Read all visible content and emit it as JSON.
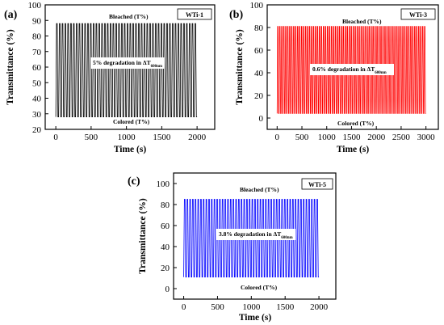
{
  "chart_data": [
    {
      "type": "line",
      "panel_label": "(a)",
      "sample_tag": "WTi-1",
      "xlabel": "Time (s)",
      "ylabel": "Transmittance (%)",
      "xticks": [
        "0",
        "500",
        "1000",
        "1500",
        "2000"
      ],
      "yticks": [
        "20",
        "30",
        "40",
        "50",
        "60",
        "70",
        "80",
        "90",
        "100"
      ],
      "xlim": [
        -150,
        2250
      ],
      "ylim": [
        20,
        100
      ],
      "color": "#000000",
      "bleached_label": "Bleached (T%)",
      "colored_label": "Colored (T%)",
      "annotation": {
        "text": "5% degradation in ΔT",
        "subscript": "600nm"
      },
      "series": [
        {
          "x_start": 0,
          "x_end": 2000,
          "cycles": 50,
          "bleached": 88,
          "colored": 28
        }
      ]
    },
    {
      "type": "line",
      "panel_label": "(b)",
      "sample_tag": "WTi-3",
      "xlabel": "Time (s)",
      "ylabel": "Transmittance (%)",
      "xticks": [
        "0",
        "500",
        "1000",
        "1500",
        "2000",
        "2500",
        "3000"
      ],
      "yticks": [
        "0",
        "20",
        "40",
        "60",
        "80",
        "100"
      ],
      "xlim": [
        -200,
        3250
      ],
      "ylim": [
        -10,
        100
      ],
      "color": "#ff0000",
      "bleached_label": "Bleached (T%)",
      "colored_label": "Colored (T%)",
      "annotation": {
        "text": "0.6% degradation in ΔT",
        "subscript": "600nm"
      },
      "series": [
        {
          "x_start": 0,
          "x_end": 3000,
          "cycles": 75,
          "bleached": 81,
          "colored": 4
        }
      ]
    },
    {
      "type": "line",
      "panel_label": "(c)",
      "sample_tag": "WTi-5",
      "xlabel": "Time (s)",
      "ylabel": "Transmittance (%)",
      "xticks": [
        "0",
        "500",
        "1000",
        "1500",
        "2000"
      ],
      "yticks": [
        "0",
        "20",
        "40",
        "60",
        "80",
        "100"
      ],
      "xlim": [
        -150,
        2250
      ],
      "ylim": [
        -10,
        110
      ],
      "color": "#0000ff",
      "bleached_label": "Bleached (T%)",
      "colored_label": "Colored (T%)",
      "annotation": {
        "text": "3.8% degradation in ΔT",
        "subscript": "600nm"
      },
      "series": [
        {
          "x_start": 0,
          "x_end": 2000,
          "cycles": 50,
          "bleached": 85,
          "colored": 11
        }
      ]
    }
  ]
}
